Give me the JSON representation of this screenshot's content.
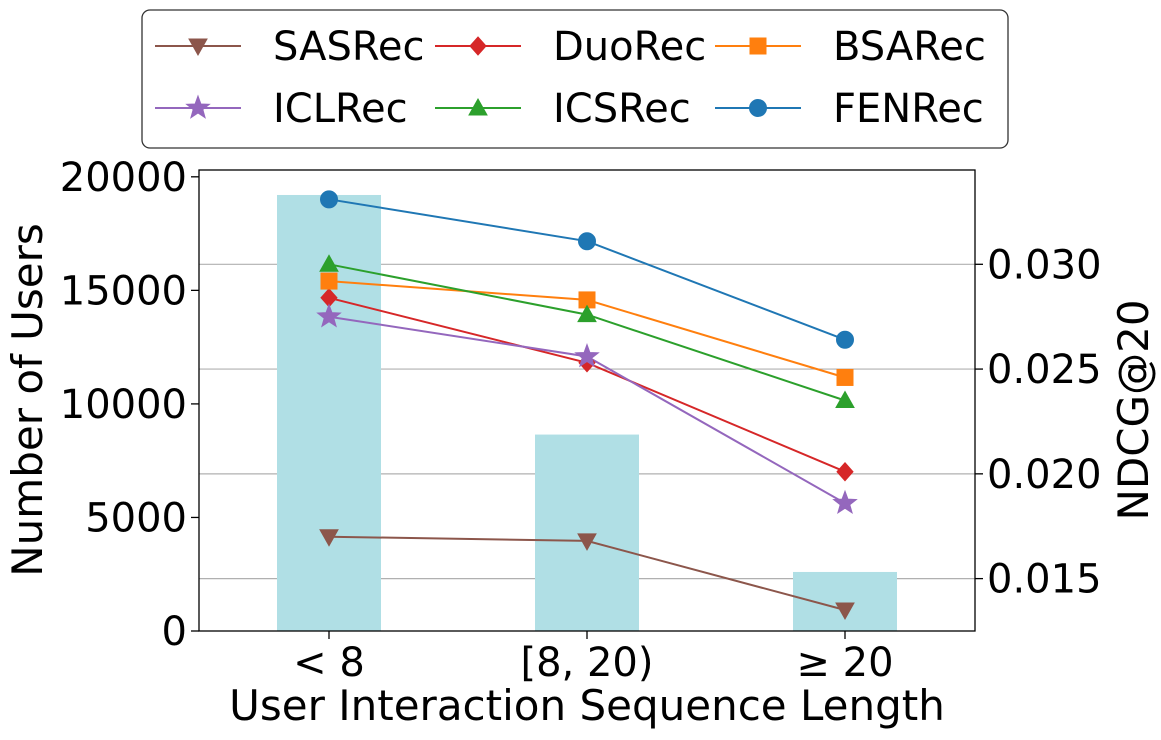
{
  "chart_data": {
    "type": "bar+line",
    "xlabel": "User Interaction Sequence Length",
    "ylabel_left": "Number of Users",
    "ylabel_right": "NDCG@20",
    "categories": [
      "< 8",
      "[8, 20)",
      "≥ 20"
    ],
    "ylim_left": [
      0,
      20300
    ],
    "ylim_right": [
      0.0125,
      0.0345
    ],
    "left_ticks": [
      0,
      5000,
      10000,
      15000,
      20000
    ],
    "left_tick_labels": [
      "0",
      "5000",
      "10000",
      "15000",
      "20000"
    ],
    "right_ticks": [
      0.015,
      0.02,
      0.025,
      0.03
    ],
    "right_tick_labels": [
      "0.015",
      "0.020",
      "0.025",
      "0.030"
    ],
    "bars": {
      "name": "Number of Users",
      "color": "#b0dfe5",
      "values": [
        19200,
        8650,
        2600
      ]
    },
    "series": [
      {
        "name": "SASRec",
        "color": "#8c564b",
        "marker": "triangle-down",
        "values": [
          0.017,
          0.0168,
          0.0135
        ]
      },
      {
        "name": "DuoRec",
        "color": "#d62728",
        "marker": "diamond",
        "values": [
          0.0284,
          0.0253,
          0.0201
        ]
      },
      {
        "name": "BSARec",
        "color": "#ff7f0e",
        "marker": "square",
        "values": [
          0.0292,
          0.0283,
          0.0246
        ]
      },
      {
        "name": "ICLRec",
        "color": "#9467bd",
        "marker": "star",
        "values": [
          0.0275,
          0.0256,
          0.0186
        ]
      },
      {
        "name": "ICSRec",
        "color": "#2ca02c",
        "marker": "triangle-up",
        "values": [
          0.03,
          0.0276,
          0.0235
        ]
      },
      {
        "name": "FENRec",
        "color": "#1f77b4",
        "marker": "circle",
        "values": [
          0.0331,
          0.0311,
          0.0264
        ]
      }
    ],
    "legend_position": "top-center"
  }
}
